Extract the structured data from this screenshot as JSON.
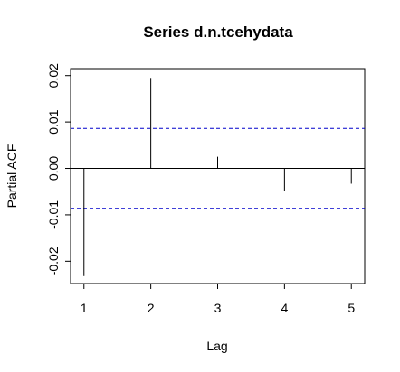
{
  "chart_data": {
    "type": "bar",
    "title": "Series  d.n.tcehydata",
    "xlabel": "Lag",
    "ylabel": "Partial ACF",
    "x": [
      1,
      2,
      3,
      4,
      5
    ],
    "values": [
      -0.0232,
      0.0195,
      0.0025,
      -0.0048,
      -0.0033
    ],
    "x_ticks": [
      1,
      2,
      3,
      4,
      5
    ],
    "y_ticks": [
      -0.02,
      -0.01,
      0.0,
      0.01,
      0.02
    ],
    "y_tick_labels": [
      "-0.02",
      "-0.01",
      "0.00",
      "0.01",
      "0.02"
    ],
    "xlim": [
      0.8,
      5.2
    ],
    "ylim": [
      -0.0248,
      0.0215
    ],
    "confidence_bound": 0.0086,
    "zero_line": true,
    "grid": false,
    "colors": {
      "bars": "#000000",
      "confidence": "#0000cc",
      "frame": "#000000"
    }
  }
}
